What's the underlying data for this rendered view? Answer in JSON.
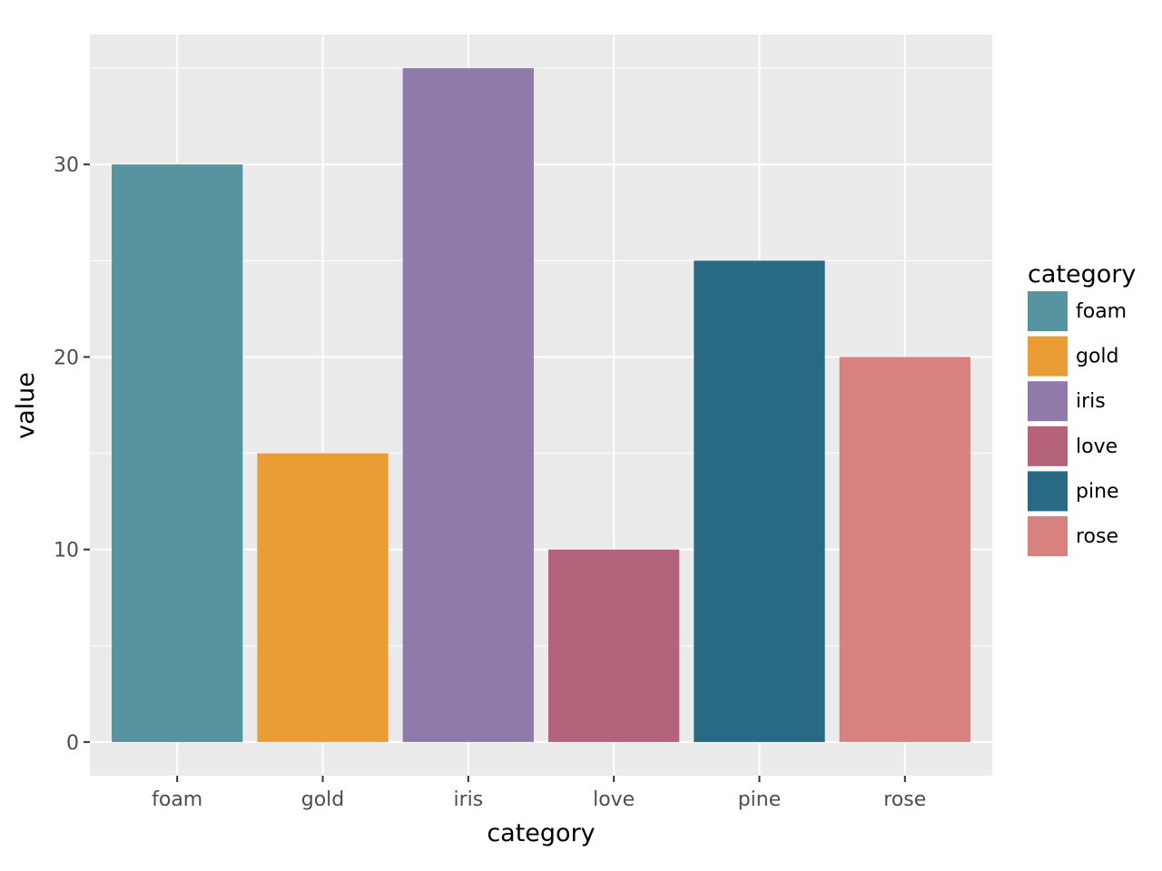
{
  "chart_data": {
    "type": "bar",
    "title": "",
    "xlabel": "category",
    "ylabel": "value",
    "categories": [
      "foam",
      "gold",
      "iris",
      "love",
      "pine",
      "rose"
    ],
    "values": [
      30,
      15,
      35,
      10,
      25,
      20
    ],
    "colors": [
      "#56949f",
      "#ea9d34",
      "#907aa9",
      "#b4637a",
      "#286983",
      "#d7827e"
    ],
    "ylim": [
      -1.75,
      36.75
    ],
    "yticks": [
      0,
      10,
      20,
      30
    ],
    "grid": true,
    "legend": {
      "title": "category",
      "position": "right",
      "entries": [
        "foam",
        "gold",
        "iris",
        "love",
        "pine",
        "rose"
      ]
    }
  },
  "theme": {
    "panel_background": "#ebebeb",
    "grid_color": "#ffffff",
    "tick_color": "#333333"
  }
}
